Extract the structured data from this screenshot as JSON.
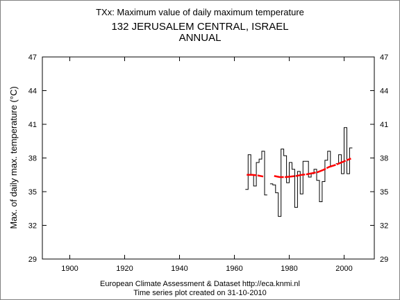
{
  "chart_data": {
    "type": "line",
    "title_index": "TXx: Maximum value of daily maximum temperature",
    "title_station": "132 JERUSALEM CENTRAL, ISRAEL",
    "title_period": "ANNUAL",
    "xlabel": "",
    "ylabel": "Max. of daily max. temperature (°C)",
    "xlim": [
      1890,
      2011
    ],
    "ylim": [
      29,
      47
    ],
    "x_ticks": [
      1900,
      1920,
      1940,
      1960,
      1980,
      2000
    ],
    "y_ticks": [
      29,
      32,
      35,
      38,
      41,
      44,
      47
    ],
    "grid": false,
    "footer_line1": "European Climate Assessment & Dataset  http://eca.knmi.nl",
    "footer_line2": "Time series plot created on 31-10-2010",
    "series": [
      {
        "style": "step",
        "color": "#000000",
        "x": [
          1964,
          1965,
          1966,
          1967,
          1968,
          1969,
          1970,
          1971,
          1972,
          1973,
          1974,
          1975,
          1976,
          1977,
          1978,
          1979,
          1980,
          1981,
          1982,
          1983,
          1984,
          1985,
          1986,
          1987,
          1988,
          1989,
          1990,
          1991,
          1992,
          1993,
          1994,
          1995,
          1996,
          1997,
          1998,
          1999,
          2000,
          2001,
          2002
        ],
        "values": [
          35.2,
          38.3,
          36.5,
          35.5,
          37.6,
          37.9,
          38.6,
          34.7,
          null,
          35.7,
          35.6,
          34.9,
          32.8,
          38.8,
          38.2,
          35.8,
          37.6,
          37.0,
          33.6,
          36.8,
          34.8,
          37.7,
          37.7,
          36.3,
          36.6,
          37.0,
          36.0,
          34.1,
          35.9,
          37.8,
          38.6,
          37.3,
          null,
          37.5,
          38.3,
          36.6,
          40.7,
          36.6,
          38.9
        ]
      },
      {
        "style": "smooth",
        "color": "#ff0000",
        "x": [
          1964,
          1966,
          1968,
          1970,
          1974,
          1976,
          1978,
          1980,
          1982,
          1984,
          1986,
          1988,
          1990,
          1992,
          1994,
          1996,
          1998,
          2000,
          2002
        ],
        "values": [
          36.5,
          36.5,
          36.45,
          36.35,
          36.4,
          36.3,
          36.3,
          36.35,
          36.4,
          36.5,
          36.55,
          36.65,
          36.75,
          36.95,
          37.2,
          37.35,
          37.55,
          37.75,
          37.95
        ]
      }
    ]
  }
}
